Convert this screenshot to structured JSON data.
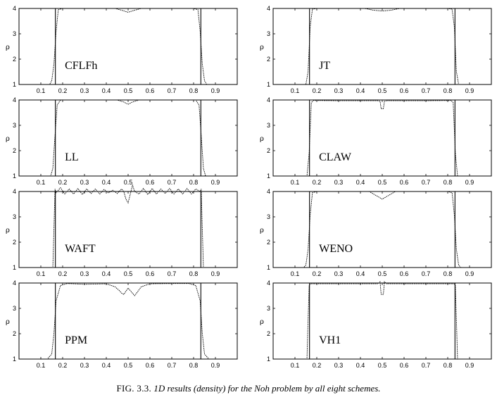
{
  "figure": {
    "caption_label": "FIG. 3.3.",
    "caption_text": "1D results (density) for the Noh problem by all eight schemes."
  },
  "chart_data": [
    {
      "type": "line",
      "panel": "CFLFh",
      "label": "CFLFh",
      "ylabel": "ρ",
      "xlim": [
        0,
        1
      ],
      "ylim": [
        1,
        4
      ],
      "xticks": [
        "0.1",
        "0.2",
        "0.3",
        "0.4",
        "0.5",
        "0.6",
        "0.7",
        "0.8",
        "0.9"
      ],
      "yticks": [
        "1",
        "2",
        "3",
        "4"
      ],
      "series": [
        {
          "style": "numerical",
          "x": [
            0.0,
            0.14,
            0.15,
            0.16,
            0.17,
            0.18,
            0.2,
            0.44,
            0.47,
            0.5,
            0.53,
            0.56,
            0.8,
            0.82,
            0.83,
            0.84,
            0.85,
            0.86,
            1.0
          ],
          "y": [
            1.0,
            1.0,
            1.15,
            1.8,
            3.1,
            3.95,
            4.0,
            4.0,
            3.93,
            3.85,
            3.93,
            4.0,
            4.0,
            3.95,
            3.1,
            1.8,
            1.15,
            1.0,
            1.0
          ]
        },
        {
          "style": "exact",
          "x": [
            0.0,
            0.1667,
            0.1667,
            0.8333,
            0.8333,
            1.0
          ],
          "y": [
            1,
            1,
            4,
            4,
            1,
            1
          ]
        }
      ]
    },
    {
      "type": "line",
      "panel": "JT",
      "label": "JT",
      "ylabel": "ρ",
      "xlim": [
        0,
        1
      ],
      "ylim": [
        1,
        4
      ],
      "xticks": [
        "0.1",
        "0.2",
        "0.3",
        "0.4",
        "0.5",
        "0.6",
        "0.7",
        "0.8",
        "0.9"
      ],
      "yticks": [
        "1",
        "2",
        "3",
        "4"
      ],
      "series": [
        {
          "style": "numerical",
          "x": [
            0.0,
            0.15,
            0.16,
            0.17,
            0.18,
            0.2,
            0.42,
            0.46,
            0.5,
            0.54,
            0.58,
            0.8,
            0.82,
            0.83,
            0.84,
            0.85,
            1.0
          ],
          "y": [
            1.0,
            1.0,
            1.5,
            3.3,
            3.97,
            4.0,
            4.0,
            3.93,
            3.9,
            3.93,
            4.0,
            4.0,
            3.97,
            3.3,
            1.5,
            1.0,
            1.0
          ]
        },
        {
          "style": "exact",
          "x": [
            0.0,
            0.1667,
            0.1667,
            0.8333,
            0.8333,
            1.0
          ],
          "y": [
            1,
            1,
            4,
            4,
            1,
            1
          ]
        }
      ]
    },
    {
      "type": "line",
      "panel": "LL",
      "label": "LL",
      "ylabel": "ρ",
      "xlim": [
        0,
        1
      ],
      "ylim": [
        1,
        4
      ],
      "xticks": [
        "0.1",
        "0.2",
        "0.3",
        "0.4",
        "0.5",
        "0.6",
        "0.7",
        "0.8",
        "0.9"
      ],
      "yticks": [
        "1",
        "2",
        "3",
        "4"
      ],
      "series": [
        {
          "style": "numerical",
          "x": [
            0.0,
            0.145,
            0.155,
            0.165,
            0.175,
            0.19,
            0.45,
            0.48,
            0.5,
            0.52,
            0.55,
            0.81,
            0.825,
            0.835,
            0.845,
            0.855,
            1.0
          ],
          "y": [
            1.0,
            1.0,
            1.3,
            2.6,
            3.8,
            4.0,
            4.0,
            3.92,
            3.83,
            3.92,
            4.0,
            4.0,
            3.8,
            2.6,
            1.3,
            1.0,
            1.0
          ]
        },
        {
          "style": "exact",
          "x": [
            0.0,
            0.1667,
            0.1667,
            0.8333,
            0.8333,
            1.0
          ],
          "y": [
            1,
            1,
            4,
            4,
            1,
            1
          ]
        }
      ]
    },
    {
      "type": "line",
      "panel": "CLAW",
      "label": "CLAW",
      "ylabel": "ρ",
      "xlim": [
        0,
        1
      ],
      "ylim": [
        1,
        4
      ],
      "xticks": [
        "0.1",
        "0.2",
        "0.3",
        "0.4",
        "0.5",
        "0.6",
        "0.7",
        "0.8",
        "0.9"
      ],
      "yticks": [
        "1",
        "2",
        "3",
        "4"
      ],
      "series": [
        {
          "style": "numerical",
          "x": [
            0.0,
            0.155,
            0.165,
            0.175,
            0.185,
            0.3,
            0.48,
            0.49,
            0.495,
            0.505,
            0.51,
            0.52,
            0.7,
            0.815,
            0.825,
            0.835,
            0.845,
            1.0
          ],
          "y": [
            1.0,
            1.0,
            1.9,
            3.9,
            3.98,
            3.97,
            3.97,
            3.95,
            3.65,
            3.65,
            3.95,
            3.97,
            3.97,
            3.98,
            3.9,
            1.9,
            1.0,
            1.0
          ]
        },
        {
          "style": "exact",
          "x": [
            0.0,
            0.1667,
            0.1667,
            0.8333,
            0.8333,
            1.0
          ],
          "y": [
            1,
            1,
            4,
            4,
            1,
            1
          ]
        }
      ]
    },
    {
      "type": "line",
      "panel": "WAFT",
      "label": "WAFT",
      "ylabel": "ρ",
      "xlim": [
        0,
        1
      ],
      "ylim": [
        1,
        4
      ],
      "xticks": [
        "0.1",
        "0.2",
        "0.3",
        "0.4",
        "0.5",
        "0.6",
        "0.7",
        "0.8",
        "0.9"
      ],
      "yticks": [
        "1",
        "2",
        "3",
        "4"
      ],
      "series": [
        {
          "style": "numerical",
          "x": [
            0.0,
            0.155,
            0.16,
            0.165,
            0.17,
            0.19,
            0.21,
            0.23,
            0.25,
            0.27,
            0.29,
            0.31,
            0.33,
            0.35,
            0.37,
            0.39,
            0.41,
            0.43,
            0.45,
            0.47,
            0.48,
            0.49,
            0.5,
            0.51,
            0.52,
            0.53,
            0.55,
            0.57,
            0.59,
            0.61,
            0.63,
            0.65,
            0.67,
            0.69,
            0.71,
            0.73,
            0.75,
            0.77,
            0.79,
            0.81,
            0.83,
            0.835,
            0.84,
            0.845,
            1.0
          ],
          "y": [
            1.0,
            1.0,
            2.5,
            4.1,
            3.95,
            4.15,
            3.9,
            4.1,
            3.9,
            4.12,
            3.88,
            4.1,
            3.92,
            4.1,
            3.9,
            4.08,
            3.95,
            4.05,
            3.92,
            4.1,
            4.0,
            3.7,
            3.55,
            3.9,
            4.25,
            4.0,
            3.9,
            4.12,
            3.88,
            4.12,
            3.9,
            4.1,
            3.92,
            4.12,
            3.9,
            4.1,
            3.9,
            4.12,
            3.9,
            4.1,
            4.0,
            4.1,
            2.5,
            1.0,
            1.0
          ]
        },
        {
          "style": "exact",
          "x": [
            0.0,
            0.1667,
            0.1667,
            0.8333,
            0.8333,
            1.0
          ],
          "y": [
            1,
            1,
            4,
            4,
            1,
            1
          ]
        }
      ]
    },
    {
      "type": "line",
      "panel": "WENO",
      "label": "WENO",
      "ylabel": "ρ",
      "xlim": [
        0,
        1
      ],
      "ylim": [
        1,
        4
      ],
      "xticks": [
        "0.1",
        "0.2",
        "0.3",
        "0.4",
        "0.5",
        "0.6",
        "0.7",
        "0.8",
        "0.9"
      ],
      "yticks": [
        "1",
        "2",
        "3",
        "4"
      ],
      "series": [
        {
          "style": "numerical",
          "x": [
            0.0,
            0.14,
            0.15,
            0.16,
            0.17,
            0.18,
            0.2,
            0.44,
            0.47,
            0.5,
            0.53,
            0.56,
            0.8,
            0.82,
            0.83,
            0.84,
            0.85,
            0.86,
            1.0
          ],
          "y": [
            1.0,
            1.0,
            1.1,
            1.7,
            3.1,
            3.95,
            4.0,
            4.0,
            3.85,
            3.7,
            3.85,
            4.0,
            4.0,
            3.95,
            3.1,
            1.7,
            1.1,
            1.0,
            1.0
          ]
        },
        {
          "style": "exact",
          "x": [
            0.0,
            0.1667,
            0.1667,
            0.8333,
            0.8333,
            1.0
          ],
          "y": [
            1,
            1,
            4,
            4,
            1,
            1
          ]
        }
      ]
    },
    {
      "type": "line",
      "panel": "PPM",
      "label": "PPM",
      "ylabel": "ρ",
      "xlim": [
        0,
        1
      ],
      "ylim": [
        1,
        4
      ],
      "xticks": [
        "0.1",
        "0.2",
        "0.3",
        "0.4",
        "0.5",
        "0.6",
        "0.7",
        "0.8",
        "0.9"
      ],
      "yticks": [
        "1",
        "2",
        "3",
        "4"
      ],
      "series": [
        {
          "style": "numerical",
          "x": [
            0.0,
            0.13,
            0.15,
            0.16,
            0.17,
            0.19,
            0.22,
            0.3,
            0.4,
            0.44,
            0.46,
            0.47,
            0.48,
            0.5,
            0.52,
            0.53,
            0.56,
            0.6,
            0.7,
            0.78,
            0.81,
            0.83,
            0.84,
            0.85,
            0.87,
            1.0
          ],
          "y": [
            1.0,
            1.0,
            1.2,
            2.0,
            3.3,
            3.9,
            3.98,
            3.95,
            3.97,
            3.85,
            3.7,
            3.6,
            3.55,
            3.8,
            3.6,
            3.5,
            3.85,
            3.97,
            3.98,
            3.98,
            3.9,
            3.3,
            2.0,
            1.2,
            1.0,
            1.0
          ]
        },
        {
          "style": "exact",
          "x": [
            0.0,
            0.1667,
            0.1667,
            0.8333,
            0.8333,
            1.0
          ],
          "y": [
            1,
            1,
            4,
            4,
            1,
            1
          ]
        }
      ]
    },
    {
      "type": "line",
      "panel": "VH1",
      "label": "VH1",
      "ylabel": "ρ",
      "xlim": [
        0,
        1
      ],
      "ylim": [
        1,
        4
      ],
      "xticks": [
        "0.1",
        "0.2",
        "0.3",
        "0.4",
        "0.5",
        "0.6",
        "0.7",
        "0.8",
        "0.9"
      ],
      "yticks": [
        "1",
        "2",
        "3",
        "4"
      ],
      "series": [
        {
          "style": "numerical",
          "x": [
            0.0,
            0.155,
            0.16,
            0.165,
            0.17,
            0.2,
            0.48,
            0.49,
            0.495,
            0.505,
            0.51,
            0.52,
            0.8,
            0.83,
            0.835,
            0.84,
            0.845,
            1.0
          ],
          "y": [
            1.0,
            1.0,
            2.5,
            3.9,
            3.97,
            3.97,
            3.97,
            4.05,
            3.55,
            3.55,
            4.05,
            3.97,
            3.97,
            3.97,
            3.9,
            2.5,
            1.0,
            1.0
          ]
        },
        {
          "style": "exact",
          "x": [
            0.0,
            0.1667,
            0.1667,
            0.8333,
            0.8333,
            1.0
          ],
          "y": [
            1,
            1,
            4,
            4,
            1,
            1
          ]
        }
      ]
    }
  ]
}
